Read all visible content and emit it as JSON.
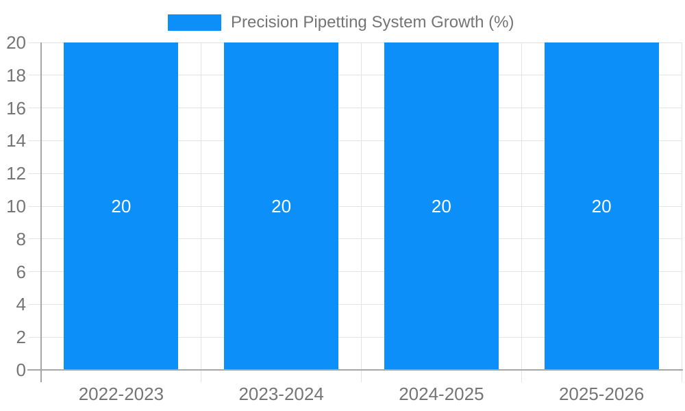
{
  "chart_data": {
    "type": "bar",
    "title": "",
    "legend": {
      "position": "top",
      "label": "Precision Pipetting System Growth (%)"
    },
    "categories": [
      "2022-2023",
      "2023-2024",
      "2024-2025",
      "2025-2026"
    ],
    "series": [
      {
        "name": "Precision Pipetting System Growth (%)",
        "values": [
          20,
          20,
          20,
          20
        ]
      }
    ],
    "data_labels": [
      "20",
      "20",
      "20",
      "20"
    ],
    "x_axis": {
      "label": ""
    },
    "y_axis": {
      "label": "",
      "min": 0,
      "max": 20,
      "tick_step": 2,
      "tick_labels": [
        "0",
        "2",
        "4",
        "6",
        "8",
        "10",
        "12",
        "14",
        "16",
        "18",
        "20"
      ]
    },
    "grid": true,
    "layout_hints": {
      "legend_position": "top-center",
      "grid": "horizontal-and-category-boundaries"
    },
    "colors": {
      "bar": "#0d8ff9",
      "grid": "#e3e3e3",
      "axis": "#a6a6a6",
      "text": "#757575",
      "data_label": "#ffffff",
      "background": "#ffffff"
    }
  }
}
